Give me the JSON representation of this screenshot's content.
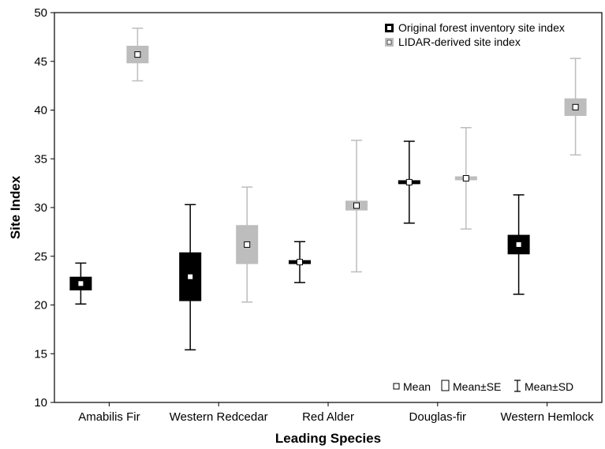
{
  "chart_data": {
    "type": "box",
    "xlabel": "Leading Species",
    "ylabel": "Site Index",
    "ylim": [
      10,
      50
    ],
    "yticks": [
      10,
      15,
      20,
      25,
      30,
      35,
      40,
      45,
      50
    ],
    "grid": false,
    "legend_position": "top-right",
    "categories": [
      "Amabilis Fir",
      "Western Redcedar",
      "Red Alder",
      "Douglas-fir",
      "Western Hemlock"
    ],
    "series": [
      {
        "name": "Original forest inventory site index",
        "color": "#000000",
        "mean": [
          22.2,
          22.9,
          24.4,
          32.6,
          26.2
        ],
        "se_low": [
          21.5,
          20.4,
          24.2,
          32.4,
          25.2
        ],
        "se_high": [
          22.9,
          25.4,
          24.6,
          32.8,
          27.2
        ],
        "sd_low": [
          20.1,
          15.4,
          22.3,
          28.4,
          21.1
        ],
        "sd_high": [
          24.3,
          30.3,
          26.5,
          36.8,
          31.3
        ]
      },
      {
        "name": "LIDAR-derived site index",
        "color": "#bdbdbd",
        "mean": [
          45.7,
          26.2,
          30.2,
          33.0,
          40.3
        ],
        "se_low": [
          44.8,
          24.2,
          29.7,
          32.8,
          39.4
        ],
        "se_high": [
          46.6,
          28.2,
          30.7,
          33.2,
          41.2
        ],
        "sd_low": [
          43.0,
          20.3,
          23.4,
          27.8,
          35.4
        ],
        "sd_high": [
          48.4,
          32.1,
          36.9,
          38.2,
          45.3
        ]
      }
    ],
    "key": {
      "mean": "Mean",
      "se": "Mean±SE",
      "sd": "Mean±SD"
    }
  }
}
